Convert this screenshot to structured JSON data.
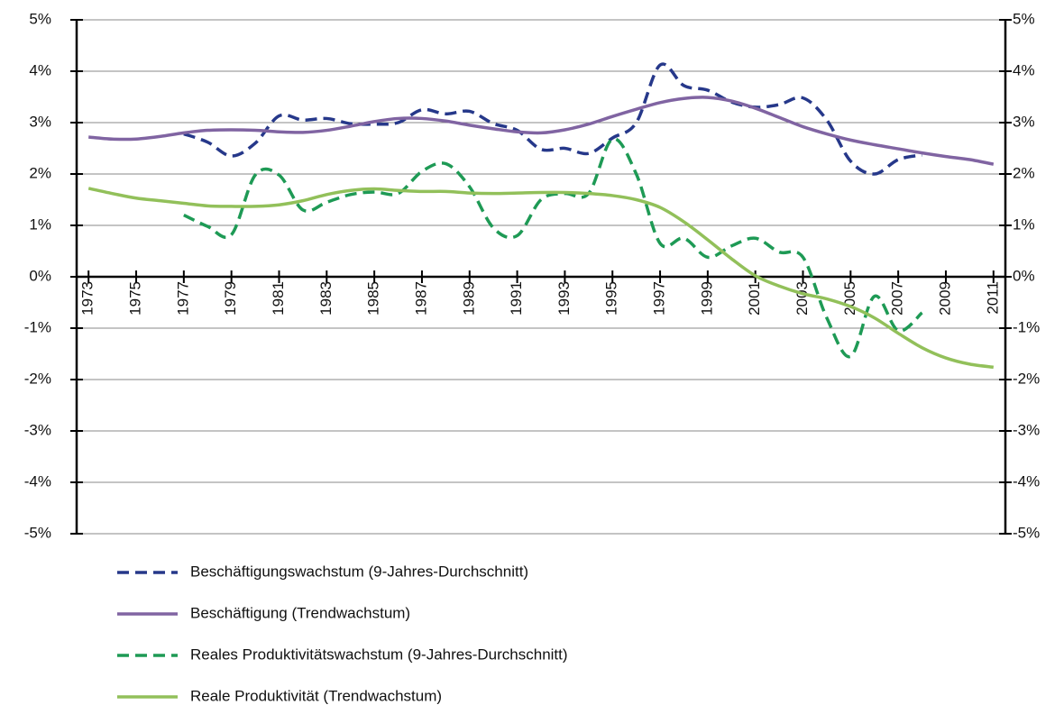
{
  "chart_data": {
    "type": "line",
    "x": [
      1973,
      1974,
      1975,
      1976,
      1977,
      1978,
      1979,
      1980,
      1981,
      1982,
      1983,
      1984,
      1985,
      1986,
      1987,
      1988,
      1989,
      1990,
      1991,
      1992,
      1993,
      1994,
      1995,
      1996,
      1997,
      1998,
      1999,
      2000,
      2001,
      2002,
      2003,
      2004,
      2005,
      2006,
      2007,
      2008,
      2009,
      2010,
      2011
    ],
    "xlim": [
      1972.5,
      2011.5
    ],
    "xticks": [
      1973,
      1975,
      1977,
      1979,
      1981,
      1983,
      1985,
      1987,
      1989,
      1991,
      1993,
      1995,
      1997,
      1999,
      2001,
      2003,
      2005,
      2007,
      2009,
      2011
    ],
    "ylim": [
      -5,
      5
    ],
    "yticks": [
      {
        "value": -5,
        "label": "-5%"
      },
      {
        "value": -4,
        "label": "-4%"
      },
      {
        "value": -3,
        "label": "-3%"
      },
      {
        "value": -2,
        "label": "-2%"
      },
      {
        "value": -1,
        "label": "-1%"
      },
      {
        "value": 0,
        "label": "0%"
      },
      {
        "value": 1,
        "label": "1%"
      },
      {
        "value": 2,
        "label": "2%"
      },
      {
        "value": 3,
        "label": "3%"
      },
      {
        "value": 4,
        "label": "4%"
      },
      {
        "value": 5,
        "label": "5%"
      }
    ],
    "y2lim": [
      -5,
      5
    ],
    "y2ticks": [
      {
        "value": -5,
        "label": "-5%"
      },
      {
        "value": -4,
        "label": "-4%"
      },
      {
        "value": -3,
        "label": "-3%"
      },
      {
        "value": -2,
        "label": "-2%"
      },
      {
        "value": -1,
        "label": "-1%"
      },
      {
        "value": 0,
        "label": "0%"
      },
      {
        "value": 1,
        "label": "1%"
      },
      {
        "value": 2,
        "label": "2%"
      },
      {
        "value": 3,
        "label": "3%"
      },
      {
        "value": 4,
        "label": "4%"
      },
      {
        "value": 5,
        "label": "5%"
      }
    ],
    "grid": true,
    "legend": "bottom",
    "series": [
      {
        "name": "Beschäftigungswachstum (9-Jahres-Durchschnitt)",
        "color": "#26388a",
        "dashed": true,
        "values": [
          null,
          null,
          null,
          null,
          2.78,
          2.62,
          2.35,
          2.6,
          3.13,
          3.05,
          3.08,
          2.98,
          2.97,
          3.0,
          3.25,
          3.17,
          3.22,
          2.98,
          2.85,
          2.48,
          2.5,
          2.4,
          2.7,
          3.0,
          4.12,
          3.72,
          3.63,
          3.4,
          3.3,
          3.35,
          3.48,
          3.05,
          2.25,
          2.0,
          2.28,
          2.37,
          null,
          null,
          null
        ]
      },
      {
        "name": "Beschäftigung (Trendwachstum)",
        "color": "#8064a2",
        "dashed": false,
        "values": [
          2.72,
          2.68,
          2.68,
          2.73,
          2.8,
          2.85,
          2.86,
          2.85,
          2.82,
          2.81,
          2.85,
          2.93,
          3.02,
          3.08,
          3.08,
          3.03,
          2.95,
          2.88,
          2.82,
          2.8,
          2.86,
          2.97,
          3.12,
          3.26,
          3.39,
          3.47,
          3.49,
          3.42,
          3.28,
          3.1,
          2.92,
          2.78,
          2.66,
          2.57,
          2.49,
          2.41,
          2.34,
          2.28,
          2.19
        ]
      },
      {
        "name": "Reales Produktivitätswachstum (9-Jahres-Durchschnitt)",
        "color": "#1e9a55",
        "dashed": true,
        "values": [
          null,
          null,
          null,
          null,
          1.2,
          0.98,
          0.82,
          1.98,
          1.98,
          1.3,
          1.45,
          1.6,
          1.65,
          1.62,
          2.05,
          2.2,
          1.75,
          0.95,
          0.8,
          1.5,
          1.62,
          1.62,
          2.68,
          2.0,
          0.65,
          0.75,
          0.38,
          0.6,
          0.75,
          0.48,
          0.38,
          -0.8,
          -1.55,
          -0.38,
          -1.05,
          -0.7,
          null,
          null,
          null
        ]
      },
      {
        "name": "Reale Produktivität (Trendwachstum)",
        "color": "#92c05a",
        "dashed": false,
        "values": [
          1.72,
          1.62,
          1.53,
          1.48,
          1.43,
          1.38,
          1.37,
          1.37,
          1.4,
          1.48,
          1.6,
          1.68,
          1.71,
          1.68,
          1.66,
          1.66,
          1.63,
          1.62,
          1.63,
          1.64,
          1.64,
          1.62,
          1.58,
          1.5,
          1.35,
          1.07,
          0.72,
          0.35,
          0.02,
          -0.18,
          -0.33,
          -0.43,
          -0.58,
          -0.8,
          -1.1,
          -1.38,
          -1.58,
          -1.7,
          -1.76
        ]
      }
    ]
  }
}
